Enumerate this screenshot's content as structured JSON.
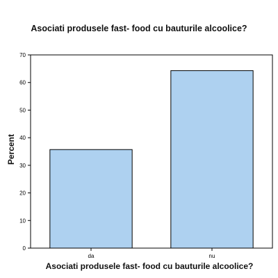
{
  "chart_data": {
    "type": "bar",
    "title": "Asociati produsele fast- food cu bauturile alcoolice?",
    "xlabel": "Asociati produsele fast- food cu bauturile alcoolice?",
    "ylabel": "Percent",
    "categories": [
      "da",
      "nu"
    ],
    "values": [
      35.7,
      64.3
    ],
    "ylim": [
      0,
      70
    ],
    "yticks": [
      0,
      10,
      20,
      30,
      40,
      50,
      60,
      70
    ],
    "grid": false,
    "bar_color": "#aed1f0",
    "bar_stroke": "#000000",
    "frame_color": "#000000"
  }
}
